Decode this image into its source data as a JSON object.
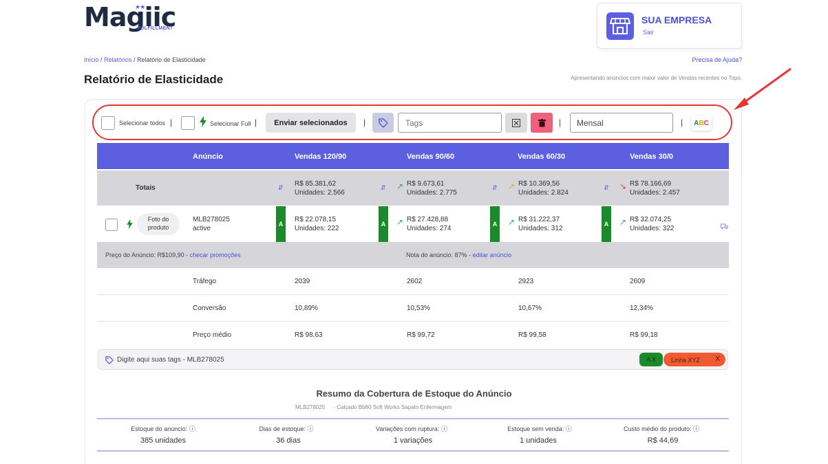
{
  "brand": {
    "name": "Magiic",
    "sub": "FULFILLMENT",
    "stars": "★★"
  },
  "company": {
    "name": "SUA EMPRESA",
    "exit_label": "Sair"
  },
  "breadcrumb": {
    "home": "Início",
    "reports": "Relatórios",
    "current": "Relatório de Elasticidade",
    "sep": " / "
  },
  "help_link": "Precisa de Ajuda?",
  "page_title": "Relatório de Elasticidade",
  "subtitle": "Apresentando anúncios com maior valor de Vendas recentes no Topo.",
  "toolbar": {
    "select_all": "Selecionar todos",
    "select_full": "Selecionar Full",
    "send_selected": "Enviar selecionados",
    "tags_placeholder": "Tags",
    "period": "Mensal",
    "separator": "|",
    "abc": {
      "a": "A",
      "b": "B",
      "c": "C"
    }
  },
  "table": {
    "headers": [
      "Anúncio",
      "Vendas 120/90",
      "Vendas 90/60",
      "Vendas 60/30",
      "Vendas 30/0"
    ],
    "totals": {
      "label": "Totais",
      "periods": [
        {
          "amount": "R$  85.381,62",
          "units": "Unidades: 2.566",
          "trend": ""
        },
        {
          "amount": "R$   9.673,61",
          "units": "Unidades: 2.775",
          "trend": "up"
        },
        {
          "amount": "R$  10.369,56",
          "units": "Unidades: 2.824",
          "trend": "up-orange"
        },
        {
          "amount": "R$  78.166,69",
          "units": "Unidades: 2.457",
          "trend": "down"
        }
      ]
    },
    "product": {
      "photo_label_1": "Foto do",
      "photo_label_2": "produto",
      "sku": "MLB278025",
      "status": "active",
      "grade": "A",
      "periods": [
        {
          "amount": "R$ 22.078,15",
          "units": "Unidades: 222"
        },
        {
          "amount": "R$ 27.428,88",
          "units": "Unidades: 274"
        },
        {
          "amount": "R$ 31.222,37",
          "units": "Unidades: 312"
        },
        {
          "amount": "R$ 32.074,25",
          "units": "Unidades: 322"
        }
      ]
    },
    "price_bar": {
      "price_text": "Preço do Anúncio: R$109,90 - ",
      "promo_link": "checar promoções",
      "note_text": "Nota do anúncio: 87% - ",
      "edit_link": "editar anúncio"
    },
    "metrics": [
      {
        "label": "Tráfego",
        "values": [
          "2039",
          "2602",
          "2923",
          "2609"
        ]
      },
      {
        "label": "Conversão",
        "values": [
          "10,89%",
          "10,53%",
          "10,67%",
          "12,34%"
        ]
      },
      {
        "label": "Preço médio",
        "values": [
          "R$ 98,63",
          "R$ 99,72",
          "R$ 99,58",
          "R$ 99,18"
        ]
      }
    ]
  },
  "tags_bar": {
    "text": "Digite aqui suas tags - MLB278025",
    "tag1": "A X",
    "tag2": "Linha XYZ",
    "tag2_close": "X"
  },
  "summary": {
    "title": "Resumo da Cobertura de Estoque do Anúncio",
    "sku": "MLB278025",
    "product_name": "- Calçado Bb80 Soft Works Sapato Enfermagem",
    "items": [
      {
        "label": "Estoque do anúncio:",
        "value": "385 unidades"
      },
      {
        "label": "Dias de estoque:",
        "value": "36 dias"
      },
      {
        "label": "Variações com ruptura:",
        "value": "1 variações"
      },
      {
        "label": "Estoque sem venda:",
        "value": "1 unidades"
      },
      {
        "label": "Custo médio do produto:",
        "value": "R$ 44,69"
      }
    ],
    "info_glyph": "ⓘ"
  },
  "colors": {
    "accent": "#5b5fe0",
    "highlight": "#e63535",
    "grade": "#1a8a2a",
    "delete": "#f0607a"
  },
  "icons": [
    "store-icon",
    "tag-icon",
    "clear-icon",
    "trash-icon",
    "lightning-icon",
    "sort-icon",
    "truck-icon",
    "info-icon",
    "arrow-annotation"
  ]
}
